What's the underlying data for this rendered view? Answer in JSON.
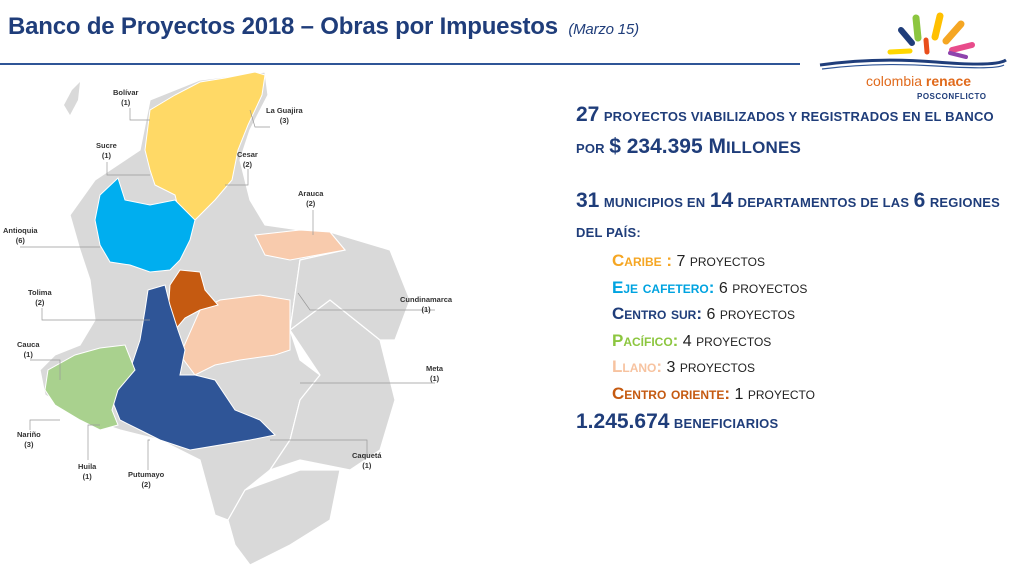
{
  "title": {
    "main": "Banco de Proyectos 2018 – Obras por Impuestos",
    "sub": "(Marzo 15)"
  },
  "logo": {
    "name_part1": "colombia ",
    "name_part2": "renace",
    "tagline": "POSCONFLICTO"
  },
  "map_labels": [
    {
      "name": "Bolívar",
      "count": "(1)"
    },
    {
      "name": "La Guajira",
      "count": "(3)"
    },
    {
      "name": "Sucre",
      "count": "(1)"
    },
    {
      "name": "Cesar",
      "count": "(2)"
    },
    {
      "name": "Arauca",
      "count": "(2)"
    },
    {
      "name": "Antioquia",
      "count": "(6)"
    },
    {
      "name": "Tolima",
      "count": "(2)"
    },
    {
      "name": "Cundinamarca",
      "count": "(1)"
    },
    {
      "name": "Cauca",
      "count": "(1)"
    },
    {
      "name": "Meta",
      "count": "(1)"
    },
    {
      "name": "Nariño",
      "count": "(3)"
    },
    {
      "name": "Caquetá",
      "count": "(1)"
    },
    {
      "name": "Huila",
      "count": "(1)"
    },
    {
      "name": "Putumayo",
      "count": "(2)"
    }
  ],
  "summary": {
    "projects_count": "27",
    "projects_text": "proyectos viabilizados y registrados en el banco por",
    "amount": "$ 234.395 M",
    "amount_suffix": "illones",
    "municipios_count": "31",
    "municipios_text": "municipios en",
    "departamentos_count": "14",
    "departamentos_text": "departamentos de las",
    "regions_count": "6",
    "regions_text": "regiones del país:",
    "beneficiaries_count": "1.245.674",
    "beneficiaries_text": "beneficiarios"
  },
  "regions": [
    {
      "name": "Caribe :",
      "count": "7",
      "unit": "proyectos",
      "color": "#f5a623"
    },
    {
      "name": "Eje cafetero:",
      "count": "6",
      "unit": "proyectos",
      "color": "#00a3e0"
    },
    {
      "name": "Centro sur:",
      "count": "6",
      "unit": "proyectos",
      "color": "#1f3d7a"
    },
    {
      "name": "Pacífico:",
      "count": "4",
      "unit": "proyectos",
      "color": "#8cc63f"
    },
    {
      "name": "Llano:",
      "count": "3",
      "unit": "proyectos",
      "color": "#f7c3a0"
    },
    {
      "name": "Centro oriente:",
      "count": "1",
      "unit": "proyecto",
      "color": "#c55a11"
    }
  ],
  "colors": {
    "title": "#1f3d7a",
    "caribe": "#ffd966",
    "eje_cafetero": "#00aeef",
    "centro_sur": "#2f5597",
    "pacifico": "#a9d18e",
    "llano": "#f8cbad",
    "centro_oriente": "#c55a11",
    "base_map": "#d9d9d9"
  }
}
